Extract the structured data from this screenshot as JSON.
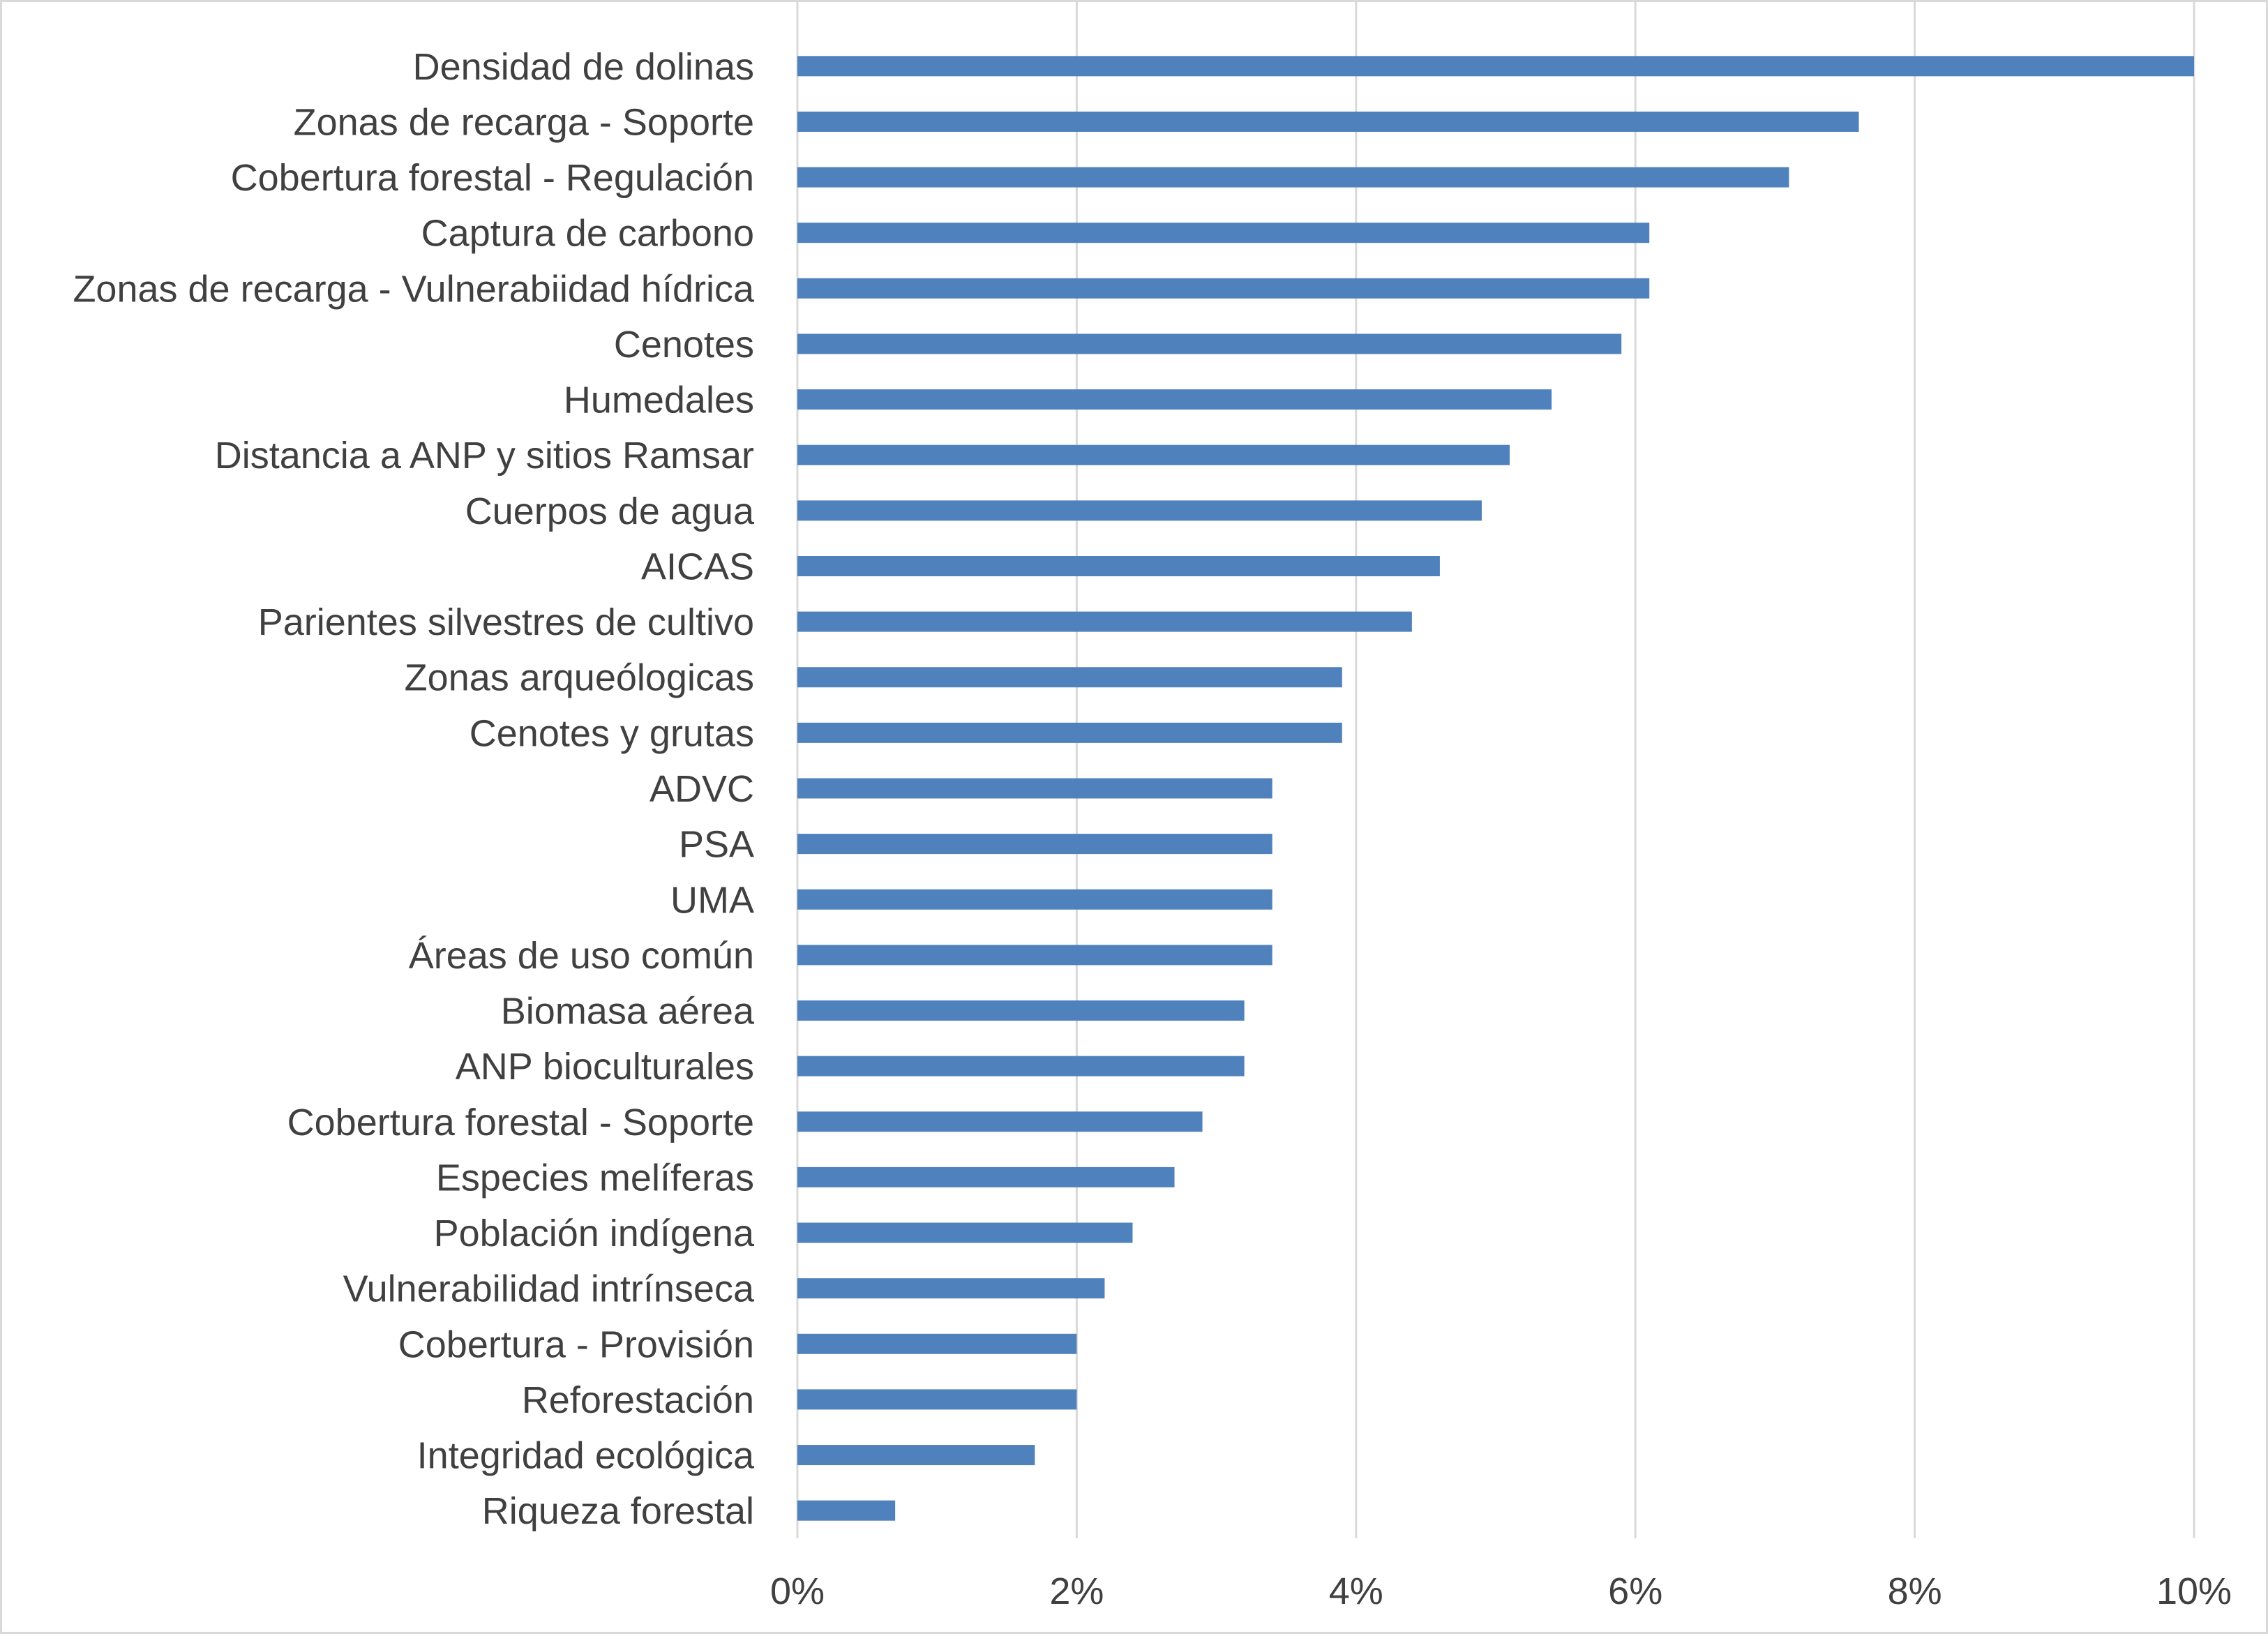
{
  "chart_data": {
    "type": "bar",
    "orientation": "horizontal",
    "title": "",
    "xlabel": "",
    "ylabel": "",
    "xlim": [
      0,
      10
    ],
    "x_tick_values": [
      0,
      2,
      4,
      6,
      8,
      10
    ],
    "x_tick_labels": [
      "0%",
      "2%",
      "4%",
      "6%",
      "8%",
      "10%"
    ],
    "grid": "vertical gridlines",
    "legend": "none",
    "bar_color": "#4f81bd",
    "categories": [
      "Densidad de dolinas",
      "Zonas de recarga - Soporte",
      "Cobertura forestal - Regulación",
      "Captura de carbono",
      "Zonas de recarga - Vulnerabiidad hídrica",
      "Cenotes",
      "Humedales",
      "Distancia a ANP y sitios Ramsar",
      "Cuerpos de agua",
      "AICAS",
      "Parientes silvestres de cultivo",
      "Zonas arqueólogicas",
      "Cenotes y grutas",
      "ADVC",
      "PSA",
      "UMA",
      "Áreas de uso común",
      "Biomasa aérea",
      "ANP bioculturales",
      "Cobertura forestal - Soporte",
      "Especies melíferas",
      "Población indígena",
      "Vulnerabilidad intrínseca",
      "Cobertura - Provisión",
      "Reforestación",
      "Integridad ecológica",
      "Riqueza forestal"
    ],
    "values": [
      10.0,
      7.6,
      7.1,
      6.1,
      6.1,
      5.9,
      5.4,
      5.1,
      4.9,
      4.6,
      4.4,
      3.9,
      3.9,
      3.4,
      3.4,
      3.4,
      3.4,
      3.2,
      3.2,
      2.9,
      2.7,
      2.4,
      2.2,
      2.0,
      2.0,
      1.7,
      0.7
    ]
  }
}
